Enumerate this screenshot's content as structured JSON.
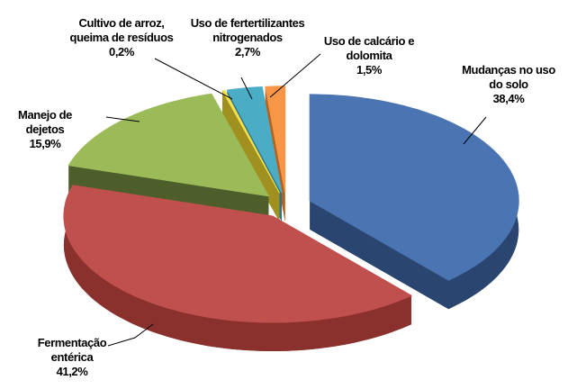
{
  "chart_data": {
    "type": "pie3d",
    "categories": [
      "Mudanças no uso do solo",
      "Fermentação entérica",
      "Manejo de dejetos",
      "Cultivo de arroz, queima de resíduos",
      "Uso de fertertilizantes nitrogenados",
      "Uso de calcário e dolomita"
    ],
    "values": [
      38.4,
      41.2,
      15.9,
      0.2,
      2.7,
      1.5
    ],
    "value_labels": [
      "38,4%",
      "41,2%",
      "15,9%",
      "0,2%",
      "2,7%",
      "1,5%"
    ],
    "colors": [
      "#4a74b2",
      "#c0504d",
      "#9bbb59",
      "#f2e14c",
      "#4bacc6",
      "#f79646"
    ],
    "side_colors": [
      "#2a4670",
      "#8a302d",
      "#4e5e2a",
      "#a09020",
      "#2d7288",
      "#b4621e"
    ]
  }
}
